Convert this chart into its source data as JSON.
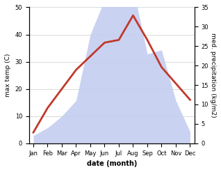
{
  "months": [
    "Jan",
    "Feb",
    "Mar",
    "Apr",
    "May",
    "Jun",
    "Jul",
    "Aug",
    "Sep",
    "Oct",
    "Nov",
    "Dec"
  ],
  "temp": [
    4,
    13,
    20,
    27,
    32,
    37,
    38,
    47,
    38,
    28,
    22,
    16
  ],
  "precip": [
    2,
    4,
    7,
    11,
    28,
    37,
    44,
    40,
    23,
    24,
    11,
    3
  ],
  "temp_color": "#c0392b",
  "precip_fill_color": "#c5cdf0",
  "xlabel": "date (month)",
  "ylabel_left": "max temp (C)",
  "ylabel_right": "med. precipitation (kg/m2)",
  "ylim_left": [
    0,
    50
  ],
  "ylim_right": [
    0,
    35
  ],
  "yticks_left": [
    0,
    10,
    20,
    30,
    40,
    50
  ],
  "yticks_right": [
    0,
    5,
    10,
    15,
    20,
    25,
    30,
    35
  ],
  "line_width": 2.0,
  "precip_scale": 1.4286
}
